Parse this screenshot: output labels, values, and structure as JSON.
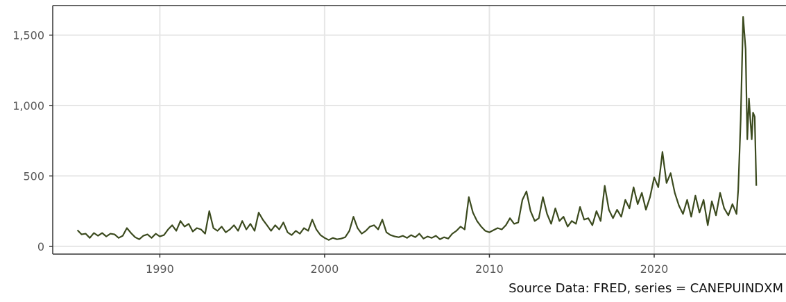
{
  "chart_data": {
    "type": "line",
    "title": "",
    "xlabel": "",
    "ylabel": "",
    "caption": "Source Data: FRED, series = CANEPUINDXM",
    "xlim": [
      1983.5,
      2028
    ],
    "ylim": [
      -55,
      1710
    ],
    "x_ticks": [
      1990,
      2000,
      2010,
      2020
    ],
    "x_tick_labels": [
      "1990",
      "2000",
      "2010",
      "2020"
    ],
    "y_ticks": [
      0,
      500,
      1000,
      1500
    ],
    "y_tick_labels": [
      "0",
      "500",
      "1,000",
      "1,500"
    ],
    "grid": true,
    "legend": "none",
    "colors": {
      "line": "#3b4a1e",
      "grid": "#e6e6e6",
      "axis": "#333333"
    },
    "series": [
      {
        "points": [
          [
            1985.0,
            115
          ],
          [
            1985.25,
            85
          ],
          [
            1985.5,
            90
          ],
          [
            1985.75,
            60
          ],
          [
            1986.0,
            95
          ],
          [
            1986.25,
            75
          ],
          [
            1986.5,
            95
          ],
          [
            1986.75,
            70
          ],
          [
            1987.0,
            90
          ],
          [
            1987.25,
            85
          ],
          [
            1987.5,
            60
          ],
          [
            1987.75,
            75
          ],
          [
            1988.0,
            130
          ],
          [
            1988.25,
            95
          ],
          [
            1988.5,
            65
          ],
          [
            1988.75,
            50
          ],
          [
            1989.0,
            75
          ],
          [
            1989.25,
            85
          ],
          [
            1989.5,
            60
          ],
          [
            1989.75,
            90
          ],
          [
            1990.0,
            70
          ],
          [
            1990.25,
            80
          ],
          [
            1990.5,
            120
          ],
          [
            1990.75,
            150
          ],
          [
            1991.0,
            110
          ],
          [
            1991.25,
            180
          ],
          [
            1991.5,
            140
          ],
          [
            1991.75,
            160
          ],
          [
            1992.0,
            105
          ],
          [
            1992.25,
            130
          ],
          [
            1992.5,
            120
          ],
          [
            1992.75,
            90
          ],
          [
            1993.0,
            250
          ],
          [
            1993.25,
            130
          ],
          [
            1993.5,
            110
          ],
          [
            1993.75,
            140
          ],
          [
            1994.0,
            100
          ],
          [
            1994.25,
            120
          ],
          [
            1994.5,
            150
          ],
          [
            1994.75,
            110
          ],
          [
            1995.0,
            180
          ],
          [
            1995.25,
            120
          ],
          [
            1995.5,
            160
          ],
          [
            1995.75,
            110
          ],
          [
            1996.0,
            240
          ],
          [
            1996.25,
            190
          ],
          [
            1996.5,
            150
          ],
          [
            1996.75,
            110
          ],
          [
            1997.0,
            150
          ],
          [
            1997.25,
            120
          ],
          [
            1997.5,
            170
          ],
          [
            1997.75,
            100
          ],
          [
            1998.0,
            80
          ],
          [
            1998.25,
            110
          ],
          [
            1998.5,
            90
          ],
          [
            1998.75,
            130
          ],
          [
            1999.0,
            110
          ],
          [
            1999.25,
            190
          ],
          [
            1999.5,
            120
          ],
          [
            1999.75,
            80
          ],
          [
            2000.0,
            60
          ],
          [
            2000.25,
            45
          ],
          [
            2000.5,
            60
          ],
          [
            2000.75,
            50
          ],
          [
            2001.0,
            55
          ],
          [
            2001.25,
            65
          ],
          [
            2001.5,
            110
          ],
          [
            2001.75,
            210
          ],
          [
            2002.0,
            130
          ],
          [
            2002.25,
            90
          ],
          [
            2002.5,
            110
          ],
          [
            2002.75,
            140
          ],
          [
            2003.0,
            150
          ],
          [
            2003.25,
            120
          ],
          [
            2003.5,
            190
          ],
          [
            2003.75,
            100
          ],
          [
            2004.0,
            80
          ],
          [
            2004.25,
            70
          ],
          [
            2004.5,
            65
          ],
          [
            2004.75,
            75
          ],
          [
            2005.0,
            60
          ],
          [
            2005.25,
            80
          ],
          [
            2005.5,
            65
          ],
          [
            2005.75,
            90
          ],
          [
            2006.0,
            55
          ],
          [
            2006.25,
            70
          ],
          [
            2006.5,
            60
          ],
          [
            2006.75,
            75
          ],
          [
            2007.0,
            50
          ],
          [
            2007.25,
            65
          ],
          [
            2007.5,
            55
          ],
          [
            2007.75,
            90
          ],
          [
            2008.0,
            110
          ],
          [
            2008.25,
            140
          ],
          [
            2008.5,
            120
          ],
          [
            2008.75,
            350
          ],
          [
            2009.0,
            240
          ],
          [
            2009.25,
            180
          ],
          [
            2009.5,
            140
          ],
          [
            2009.75,
            110
          ],
          [
            2010.0,
            100
          ],
          [
            2010.25,
            115
          ],
          [
            2010.5,
            130
          ],
          [
            2010.75,
            120
          ],
          [
            2011.0,
            150
          ],
          [
            2011.25,
            200
          ],
          [
            2011.5,
            160
          ],
          [
            2011.75,
            170
          ],
          [
            2012.0,
            330
          ],
          [
            2012.25,
            390
          ],
          [
            2012.5,
            250
          ],
          [
            2012.75,
            180
          ],
          [
            2013.0,
            200
          ],
          [
            2013.25,
            350
          ],
          [
            2013.5,
            230
          ],
          [
            2013.75,
            160
          ],
          [
            2014.0,
            270
          ],
          [
            2014.25,
            180
          ],
          [
            2014.5,
            210
          ],
          [
            2014.75,
            140
          ],
          [
            2015.0,
            180
          ],
          [
            2015.25,
            160
          ],
          [
            2015.5,
            280
          ],
          [
            2015.75,
            190
          ],
          [
            2016.0,
            200
          ],
          [
            2016.25,
            150
          ],
          [
            2016.5,
            250
          ],
          [
            2016.75,
            180
          ],
          [
            2017.0,
            430
          ],
          [
            2017.25,
            260
          ],
          [
            2017.5,
            200
          ],
          [
            2017.75,
            260
          ],
          [
            2018.0,
            210
          ],
          [
            2018.25,
            330
          ],
          [
            2018.5,
            270
          ],
          [
            2018.75,
            420
          ],
          [
            2019.0,
            300
          ],
          [
            2019.25,
            380
          ],
          [
            2019.5,
            260
          ],
          [
            2019.75,
            350
          ],
          [
            2020.0,
            490
          ],
          [
            2020.25,
            420
          ],
          [
            2020.5,
            670
          ],
          [
            2020.75,
            450
          ],
          [
            2021.0,
            520
          ],
          [
            2021.25,
            380
          ],
          [
            2021.5,
            290
          ],
          [
            2021.75,
            230
          ],
          [
            2022.0,
            330
          ],
          [
            2022.25,
            210
          ],
          [
            2022.5,
            360
          ],
          [
            2022.75,
            240
          ],
          [
            2023.0,
            330
          ],
          [
            2023.25,
            150
          ],
          [
            2023.5,
            320
          ],
          [
            2023.75,
            220
          ],
          [
            2024.0,
            380
          ],
          [
            2024.25,
            270
          ],
          [
            2024.5,
            220
          ],
          [
            2024.75,
            300
          ],
          [
            2025.0,
            230
          ],
          [
            2025.1,
            400
          ],
          [
            2025.25,
            900
          ],
          [
            2025.4,
            1630
          ],
          [
            2025.55,
            1400
          ],
          [
            2025.65,
            760
          ],
          [
            2025.75,
            1050
          ],
          [
            2025.85,
            880
          ],
          [
            2025.92,
            760
          ],
          [
            2026.0,
            950
          ],
          [
            2026.1,
            920
          ],
          [
            2026.2,
            430
          ]
        ]
      }
    ]
  }
}
